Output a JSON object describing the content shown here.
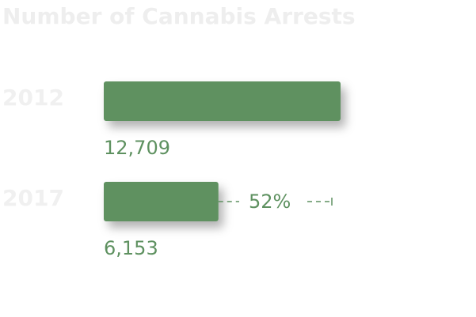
{
  "chart_data": {
    "type": "hbar",
    "title": "Number of Cannabis Arrests",
    "categories": [
      "2012",
      "2017"
    ],
    "values": [
      12709,
      6153
    ],
    "value_labels": [
      "12,709",
      "6,153"
    ],
    "color": "#5e9160",
    "xlim": [
      0,
      12709
    ],
    "annotation": "52%"
  }
}
